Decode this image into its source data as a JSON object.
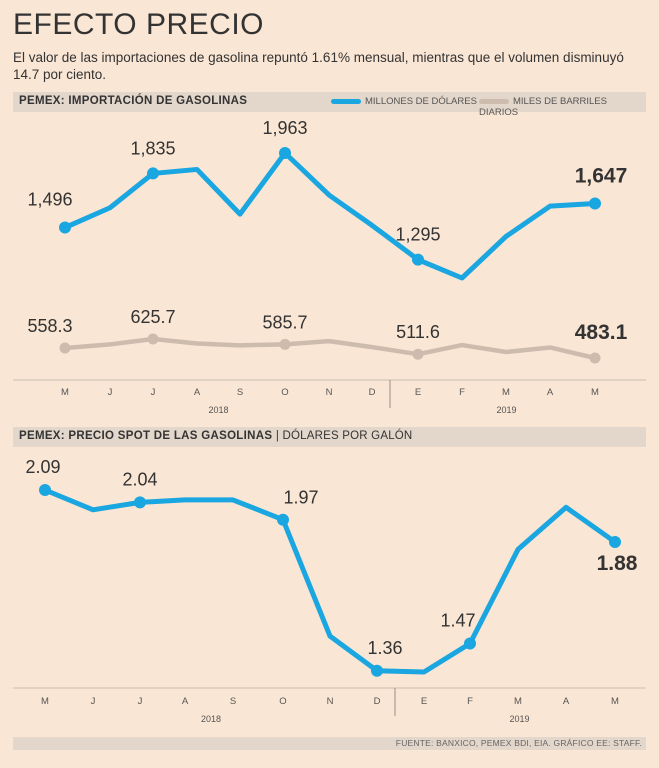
{
  "title": "EFECTO PRECIO",
  "subtitle": "El valor de las importaciones de gasolina repuntó 1.61% mensual, mientras que el volumen disminuyó 14.7 por ciento.",
  "footer": "FUENTE: BANXICO, PEMEX BDI, EIA. GRÁFICO EE: STAFF.",
  "colors": {
    "accent": "#1aa6e0",
    "secondary": "#cdbcae",
    "background": "#fae6d4",
    "band": "#e3d6ca"
  },
  "chart_data": [
    {
      "type": "line",
      "title": "PEMEX: IMPORTACIÓN DE GASOLINAS",
      "categories": [
        "M",
        "J",
        "J",
        "A",
        "S",
        "O",
        "N",
        "D",
        "E",
        "F",
        "M",
        "A",
        "M"
      ],
      "years": [
        {
          "label": "2018",
          "span": [
            0,
            7
          ]
        },
        {
          "label": "2019",
          "span": [
            8,
            12
          ]
        }
      ],
      "legend_position": "top-right",
      "series": [
        {
          "name": "MILLONES DE DÓLARES",
          "color": "#1aa6e0",
          "values": [
            1496,
            1620,
            1835,
            1860,
            1580,
            1963,
            1700,
            1510,
            1295,
            1180,
            1440,
            1630,
            1647
          ],
          "labels": [
            {
              "index": 0,
              "text": "1,496"
            },
            {
              "index": 2,
              "text": "1,835"
            },
            {
              "index": 5,
              "text": "1,963"
            },
            {
              "index": 8,
              "text": "1,295"
            },
            {
              "index": 12,
              "text": "1,647",
              "bold": true
            }
          ]
        },
        {
          "name": "MILES DE BARRILES DIARIOS",
          "color": "#cdbcae",
          "values": [
            558.3,
            585,
            625.7,
            592,
            578,
            585.7,
            610,
            565,
            511.6,
            580,
            528,
            562,
            483.1
          ],
          "labels": [
            {
              "index": 0,
              "text": "558.3"
            },
            {
              "index": 2,
              "text": "625.7"
            },
            {
              "index": 5,
              "text": "585.7"
            },
            {
              "index": 8,
              "text": "511.6"
            },
            {
              "index": 12,
              "text": "483.1",
              "bold": true
            }
          ]
        }
      ]
    },
    {
      "type": "line",
      "title": "PEMEX: PRECIO SPOT DE LAS GASOLINAS",
      "unit": "DÓLARES POR GALÓN",
      "categories": [
        "M",
        "J",
        "J",
        "A",
        "S",
        "O",
        "N",
        "D",
        "E",
        "F",
        "M",
        "A",
        "M"
      ],
      "years": [
        {
          "label": "2018",
          "span": [
            0,
            7
          ]
        },
        {
          "label": "2019",
          "span": [
            8,
            12
          ]
        }
      ],
      "series": [
        {
          "name": "",
          "color": "#1aa6e0",
          "values": [
            2.09,
            2.01,
            2.04,
            2.05,
            2.05,
            1.97,
            1.5,
            1.36,
            1.355,
            1.47,
            1.85,
            2.02,
            1.88
          ],
          "labels": [
            {
              "index": 0,
              "text": "2.09"
            },
            {
              "index": 2,
              "text": "2.04"
            },
            {
              "index": 5,
              "text": "1.97"
            },
            {
              "index": 7,
              "text": "1.36"
            },
            {
              "index": 9,
              "text": "1.47"
            },
            {
              "index": 12,
              "text": "1.88",
              "bold": true
            }
          ]
        }
      ]
    }
  ]
}
